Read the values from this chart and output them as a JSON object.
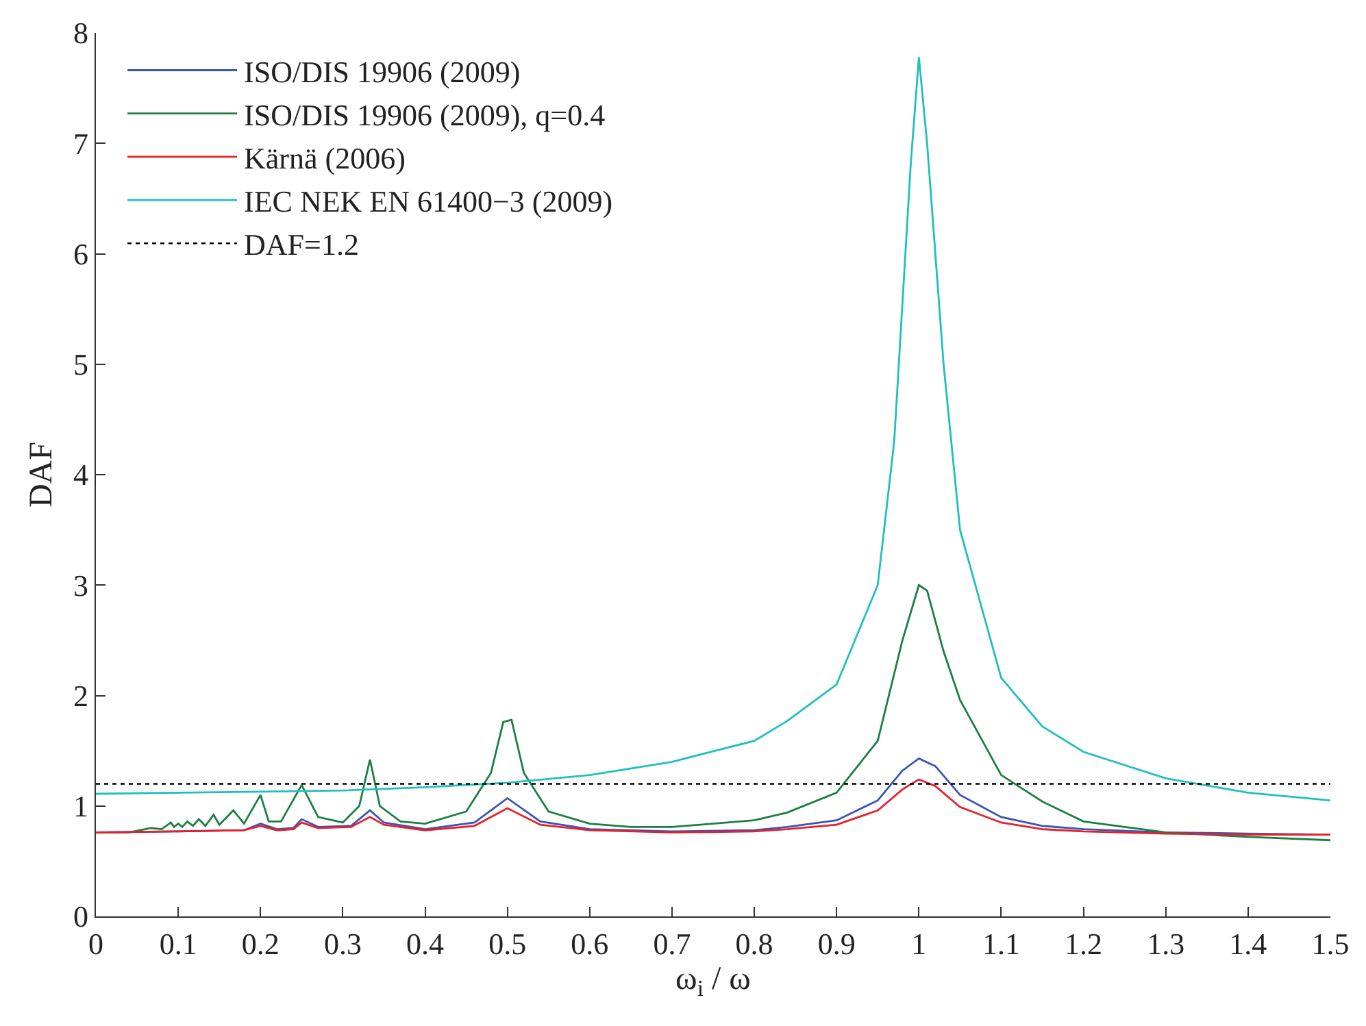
{
  "chart_data": {
    "type": "line",
    "xlabel": "ω$_{i}$ / ω",
    "ylabel": "DAF",
    "xlim": [
      0,
      1.5
    ],
    "xticks": [
      0,
      0.1,
      0.2,
      0.3,
      0.4,
      0.5,
      0.6,
      0.7,
      0.8,
      0.9,
      1,
      1.1,
      1.2,
      1.3,
      1.4,
      1.5
    ],
    "ylim": [
      0,
      8
    ],
    "yticks": [
      0,
      1,
      2,
      3,
      4,
      5,
      6,
      7,
      8
    ],
    "grid": false,
    "legend": "top left",
    "marker": "none",
    "line_style": "solid",
    "series": [
      {
        "name": "ISO/DIS 19906 (2009)",
        "color": "#3a55b4",
        "x": [
          0,
          0.1,
          0.18,
          0.2,
          0.22,
          0.24,
          0.25,
          0.27,
          0.31,
          0.333,
          0.35,
          0.4,
          0.46,
          0.5,
          0.54,
          0.6,
          0.7,
          0.8,
          0.84,
          0.9,
          0.95,
          0.98,
          1.0,
          1.02,
          1.05,
          1.1,
          1.15,
          1.2,
          1.3,
          1.4,
          1.5
        ],
        "values": [
          0.76,
          0.77,
          0.78,
          0.84,
          0.79,
          0.8,
          0.88,
          0.81,
          0.82,
          0.96,
          0.85,
          0.79,
          0.85,
          1.07,
          0.86,
          0.79,
          0.77,
          0.78,
          0.81,
          0.87,
          1.05,
          1.32,
          1.43,
          1.36,
          1.1,
          0.9,
          0.82,
          0.79,
          0.76,
          0.75,
          0.74
        ]
      },
      {
        "name": "ISO/DIS 19906 (2009), q=0.4",
        "color": "#1a8040",
        "x": [
          0,
          0.04,
          0.067,
          0.08,
          0.091,
          0.095,
          0.1,
          0.105,
          0.111,
          0.118,
          0.125,
          0.133,
          0.143,
          0.15,
          0.167,
          0.18,
          0.2,
          0.21,
          0.225,
          0.25,
          0.27,
          0.3,
          0.32,
          0.333,
          0.345,
          0.37,
          0.4,
          0.45,
          0.48,
          0.495,
          0.505,
          0.52,
          0.55,
          0.6,
          0.65,
          0.7,
          0.8,
          0.84,
          0.9,
          0.95,
          0.98,
          1.0,
          1.01,
          1.03,
          1.05,
          1.1,
          1.15,
          1.2,
          1.3,
          1.4,
          1.5
        ],
        "values": [
          0.76,
          0.76,
          0.8,
          0.79,
          0.85,
          0.81,
          0.84,
          0.81,
          0.86,
          0.82,
          0.88,
          0.82,
          0.92,
          0.83,
          0.96,
          0.84,
          1.1,
          0.86,
          0.86,
          1.19,
          0.9,
          0.85,
          1.0,
          1.42,
          1.0,
          0.86,
          0.84,
          0.95,
          1.3,
          1.76,
          1.78,
          1.3,
          0.95,
          0.84,
          0.81,
          0.81,
          0.87,
          0.94,
          1.12,
          1.59,
          2.5,
          3.0,
          2.95,
          2.4,
          1.96,
          1.28,
          1.04,
          0.86,
          0.76,
          0.72,
          0.69
        ]
      },
      {
        "name": "Kärnä (2006)",
        "color": "#e8202a",
        "x": [
          0,
          0.1,
          0.18,
          0.2,
          0.22,
          0.24,
          0.25,
          0.27,
          0.31,
          0.333,
          0.35,
          0.4,
          0.46,
          0.5,
          0.54,
          0.6,
          0.7,
          0.8,
          0.84,
          0.9,
          0.95,
          0.98,
          1.0,
          1.02,
          1.05,
          1.1,
          1.15,
          1.2,
          1.3,
          1.4,
          1.5
        ],
        "values": [
          0.76,
          0.77,
          0.78,
          0.82,
          0.78,
          0.79,
          0.85,
          0.8,
          0.81,
          0.9,
          0.83,
          0.78,
          0.82,
          0.98,
          0.83,
          0.78,
          0.76,
          0.77,
          0.79,
          0.83,
          0.96,
          1.15,
          1.24,
          1.18,
          0.99,
          0.85,
          0.79,
          0.77,
          0.75,
          0.74,
          0.74
        ]
      },
      {
        "name": "IEC NEK EN 61400−3 (2009)",
        "color": "#20bfbf",
        "x": [
          0,
          0.1,
          0.2,
          0.3,
          0.4,
          0.5,
          0.6,
          0.7,
          0.8,
          0.84,
          0.9,
          0.95,
          0.97,
          0.99,
          1.0,
          1.01,
          1.03,
          1.05,
          1.1,
          1.15,
          1.2,
          1.3,
          1.4,
          1.5
        ],
        "values": [
          1.11,
          1.12,
          1.13,
          1.14,
          1.17,
          1.21,
          1.28,
          1.4,
          1.59,
          1.77,
          2.1,
          3.0,
          4.3,
          6.8,
          7.78,
          7.0,
          5.0,
          3.5,
          2.16,
          1.72,
          1.49,
          1.25,
          1.12,
          1.05
        ]
      }
    ],
    "ref_lines": [
      {
        "axis": "y",
        "value": 1.2,
        "label": "DAF=1.2",
        "color": "#000000",
        "line_style": "dotted"
      }
    ]
  }
}
